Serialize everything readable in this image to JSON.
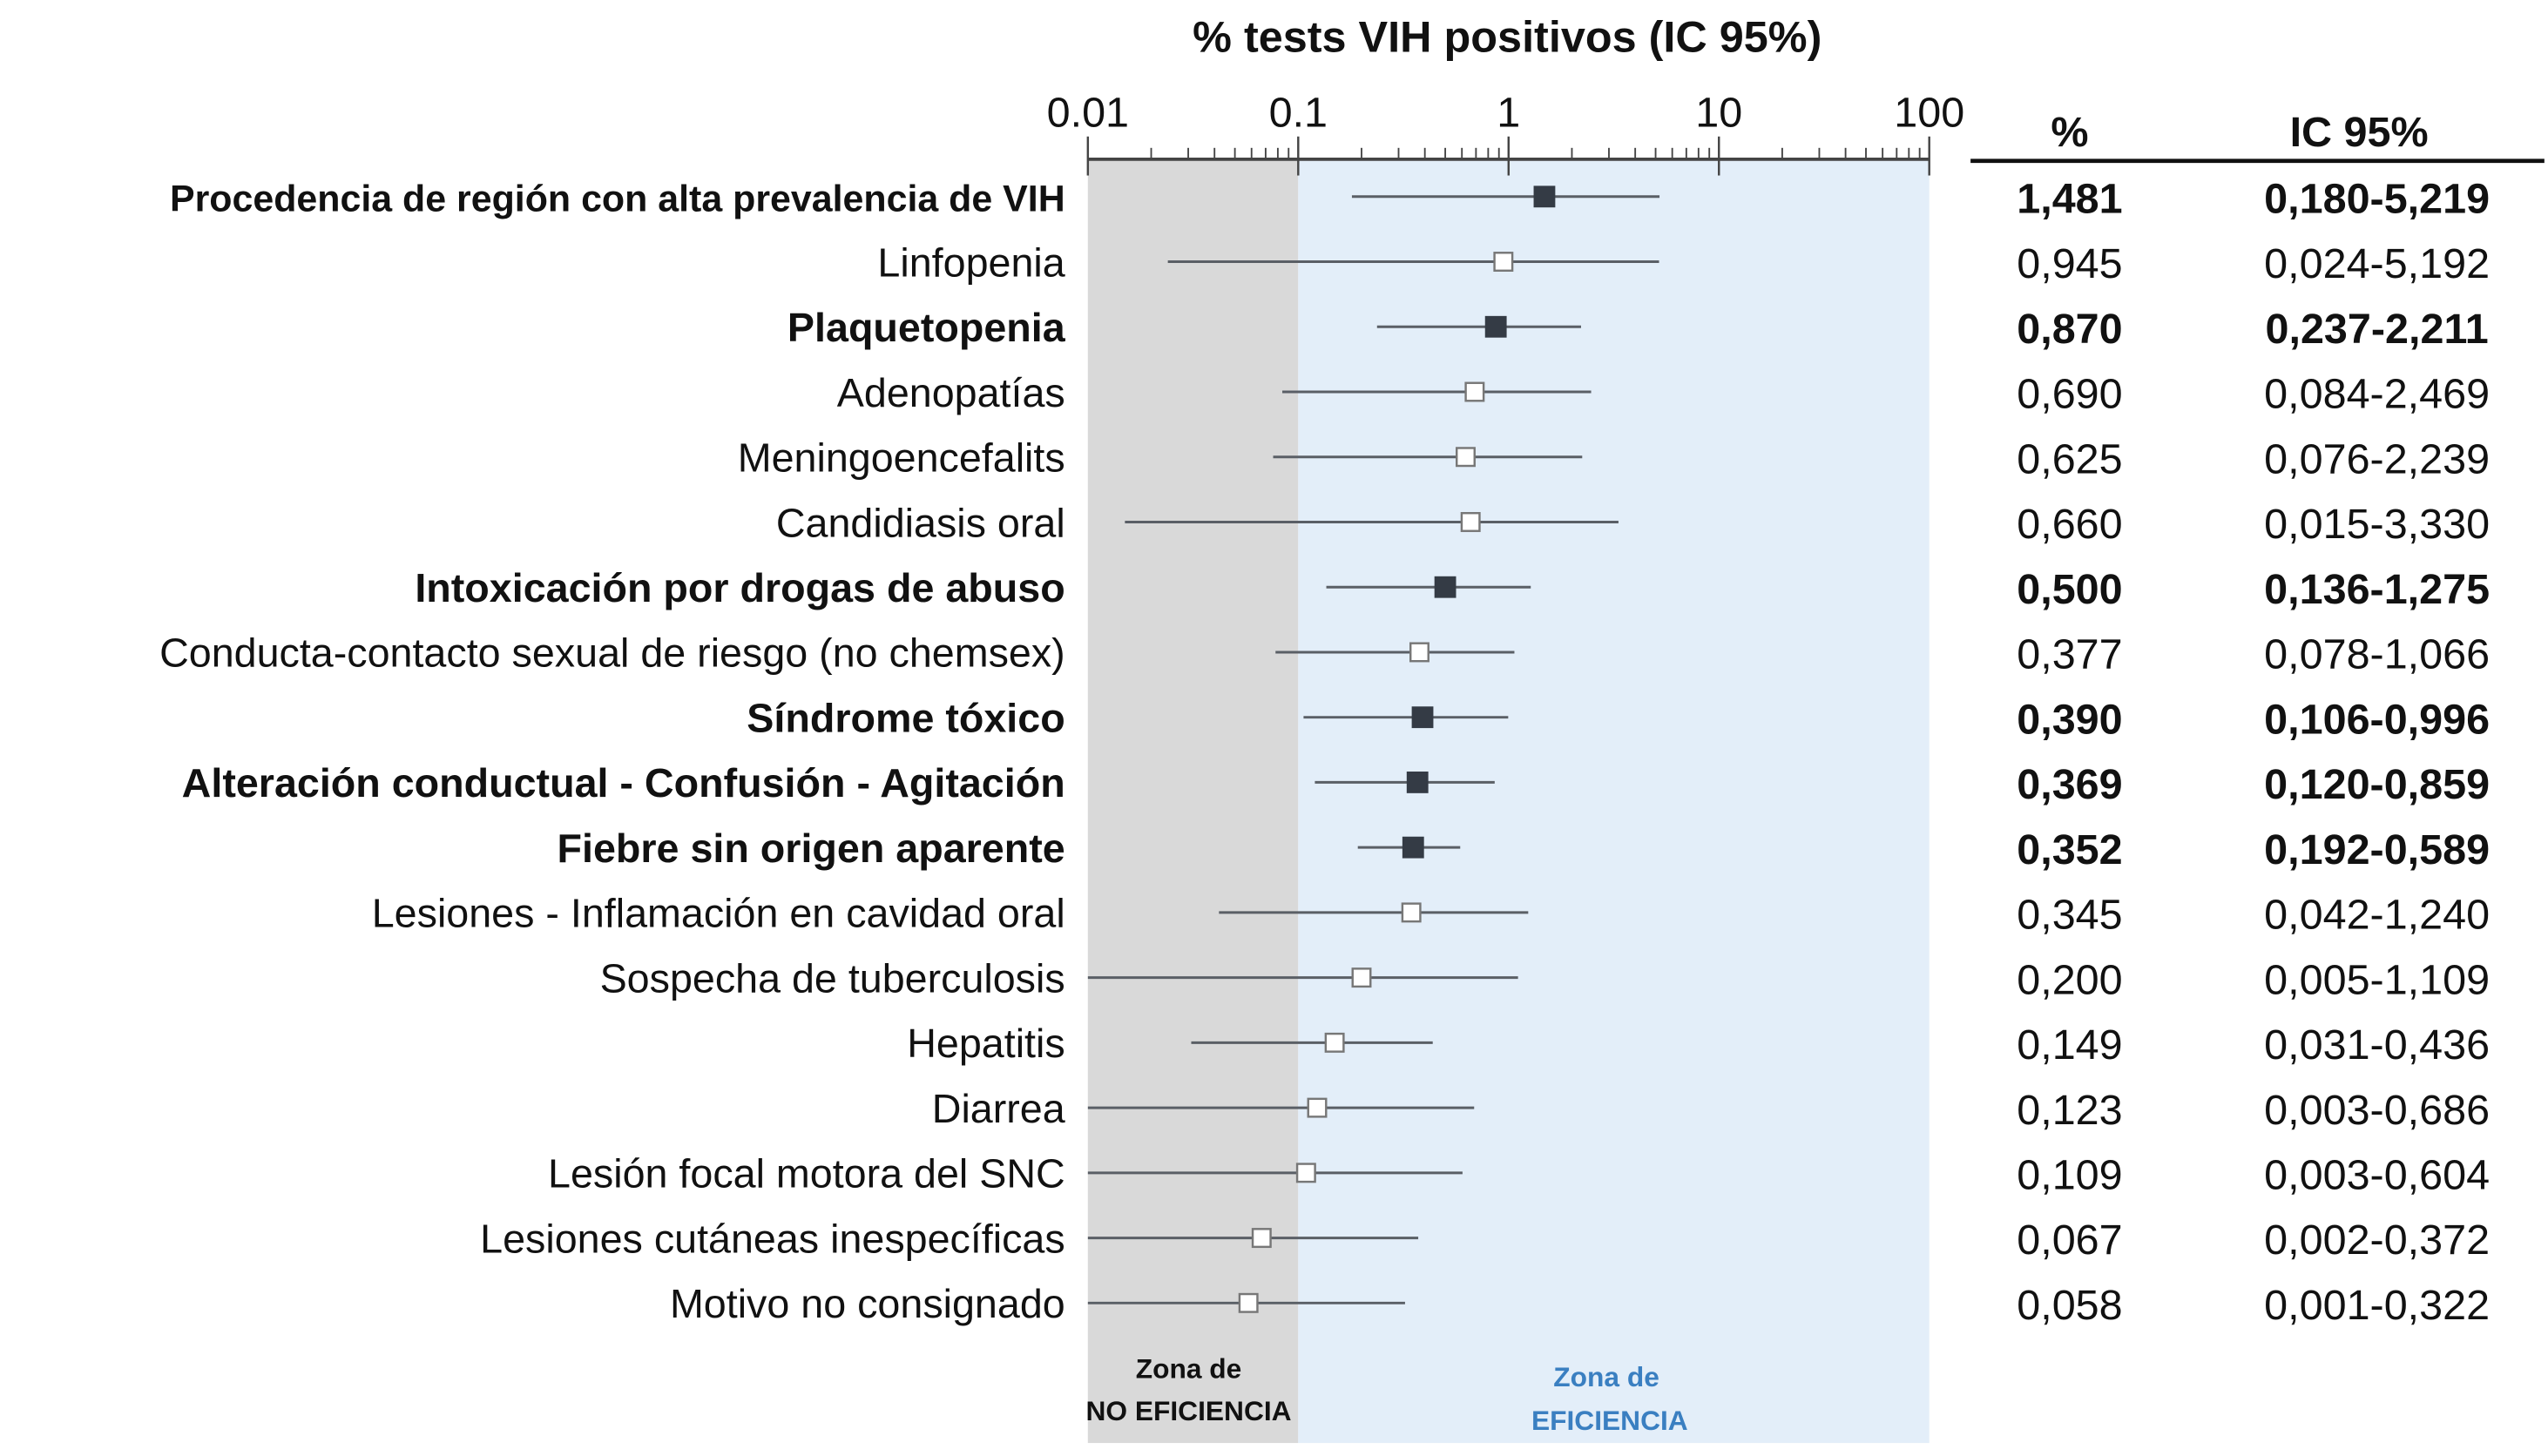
{
  "chart_data": {
    "type": "forest",
    "title": "% tests VIH positivos (IC 95%)",
    "x_scale": "log",
    "xlim": [
      0.01,
      100
    ],
    "x_ticks": [
      "0.01",
      "0.1",
      "1",
      "10",
      "100"
    ],
    "columns": {
      "pct": "%",
      "ci": "IC 95%"
    },
    "zones": [
      {
        "line1": "Zona de",
        "line2": "NO EFICIENCIA",
        "range": [
          0.01,
          0.1
        ],
        "fill": "#d9d9d9",
        "text_color": "#222222"
      },
      {
        "line1": "Zona de",
        "line2": "EFICIENCIA",
        "range": [
          0.1,
          100
        ],
        "fill": "#e3eef9",
        "text_color": "#3a7fc1"
      }
    ],
    "colors": {
      "filled_marker": "#343b45",
      "line": "#5a5f66",
      "hollow_marker": "#777777"
    },
    "rows": [
      {
        "label": "Procedencia de región con alta prevalencia de VIH",
        "value": 1.481,
        "lo": 0.18,
        "hi": 5.219,
        "pct": "1,481",
        "ci": "0,180-5,219",
        "bold": true
      },
      {
        "label": "Linfopenia",
        "value": 0.945,
        "lo": 0.024,
        "hi": 5.192,
        "pct": "0,945",
        "ci": "0,024-5,192",
        "bold": false
      },
      {
        "label": "Plaquetopenia",
        "value": 0.87,
        "lo": 0.237,
        "hi": 2.211,
        "pct": "0,870",
        "ci": "0,237-2,211",
        "bold": true
      },
      {
        "label": "Adenopatías",
        "value": 0.69,
        "lo": 0.084,
        "hi": 2.469,
        "pct": "0,690",
        "ci": "0,084-2,469",
        "bold": false
      },
      {
        "label": "Meningoencefalits",
        "value": 0.625,
        "lo": 0.076,
        "hi": 2.239,
        "pct": "0,625",
        "ci": "0,076-2,239",
        "bold": false
      },
      {
        "label": "Candidiasis oral",
        "value": 0.66,
        "lo": 0.015,
        "hi": 3.33,
        "pct": "0,660",
        "ci": "0,015-3,330",
        "bold": false
      },
      {
        "label": "Intoxicación por drogas de abuso",
        "value": 0.5,
        "lo": 0.136,
        "hi": 1.275,
        "pct": "0,500",
        "ci": "0,136-1,275",
        "bold": true
      },
      {
        "label": "Conducta-contacto sexual de riesgo (no chemsex)",
        "value": 0.377,
        "lo": 0.078,
        "hi": 1.066,
        "pct": "0,377",
        "ci": "0,078-1,066",
        "bold": false
      },
      {
        "label": "Síndrome tóxico",
        "value": 0.39,
        "lo": 0.106,
        "hi": 0.996,
        "pct": "0,390",
        "ci": "0,106-0,996",
        "bold": true
      },
      {
        "label": "Alteración conductual - Confusión - Agitación",
        "value": 0.369,
        "lo": 0.12,
        "hi": 0.859,
        "pct": "0,369",
        "ci": "0,120-0,859",
        "bold": true
      },
      {
        "label": "Fiebre sin origen aparente",
        "value": 0.352,
        "lo": 0.192,
        "hi": 0.589,
        "pct": "0,352",
        "ci": "0,192-0,589",
        "bold": true
      },
      {
        "label": "Lesiones - Inflamación en cavidad oral",
        "value": 0.345,
        "lo": 0.042,
        "hi": 1.24,
        "pct": "0,345",
        "ci": "0,042-1,240",
        "bold": false
      },
      {
        "label": "Sospecha de tuberculosis",
        "value": 0.2,
        "lo": 0.005,
        "hi": 1.109,
        "pct": "0,200",
        "ci": "0,005-1,109",
        "bold": false
      },
      {
        "label": "Hepatitis",
        "value": 0.149,
        "lo": 0.031,
        "hi": 0.436,
        "pct": "0,149",
        "ci": "0,031-0,436",
        "bold": false
      },
      {
        "label": "Diarrea",
        "value": 0.123,
        "lo": 0.003,
        "hi": 0.686,
        "pct": "0,123",
        "ci": "0,003-0,686",
        "bold": false
      },
      {
        "label": "Lesión focal motora del SNC",
        "value": 0.109,
        "lo": 0.003,
        "hi": 0.604,
        "pct": "0,109",
        "ci": "0,003-0,604",
        "bold": false
      },
      {
        "label": "Lesiones cutáneas inespecíficas",
        "value": 0.067,
        "lo": 0.002,
        "hi": 0.372,
        "pct": "0,067",
        "ci": "0,002-0,372",
        "bold": false
      },
      {
        "label": "Motivo no consignado",
        "value": 0.058,
        "lo": 0.001,
        "hi": 0.322,
        "pct": "0,058",
        "ci": "0,001-0,322",
        "bold": false
      }
    ]
  }
}
